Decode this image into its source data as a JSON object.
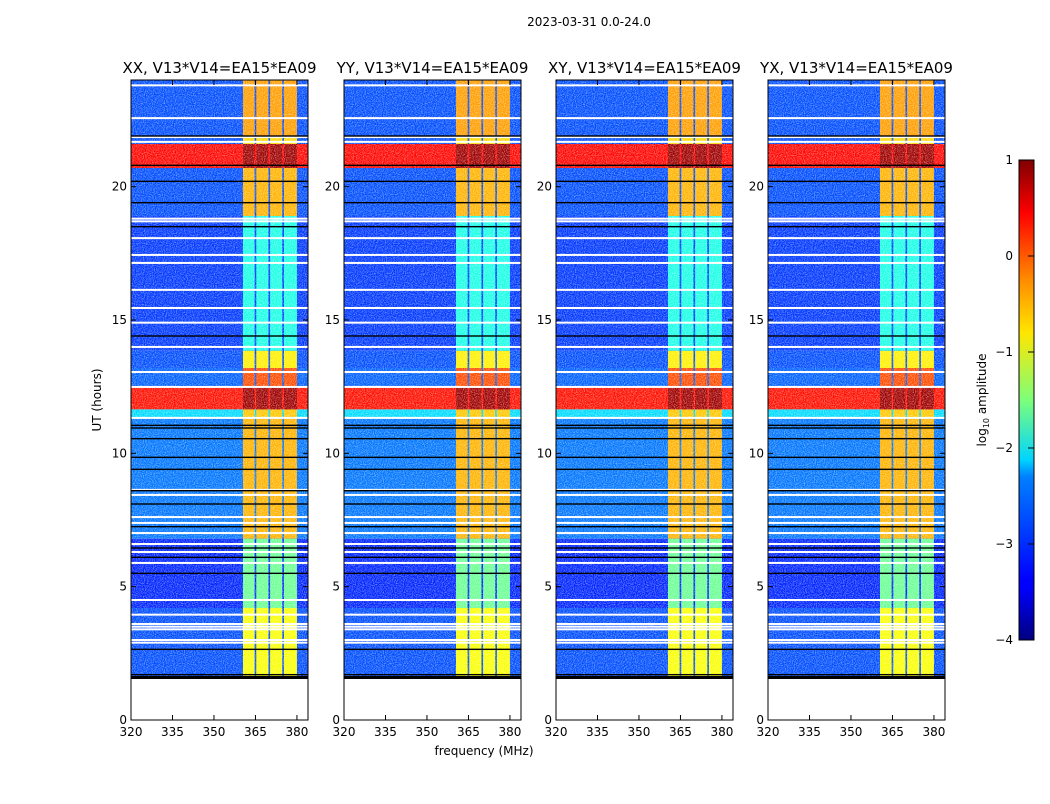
{
  "figure_title": "2023-03-31 0.0-24.0",
  "chart_data": {
    "type": "heatmap",
    "title": "2023-03-31 0.0-24.0",
    "xlabel": "frequency (MHz)",
    "ylabel": "UT (hours)",
    "xlim": [
      320,
      384
    ],
    "ylim": [
      0,
      24
    ],
    "xticks": [
      "320",
      "335",
      "350",
      "365",
      "380"
    ],
    "yticks": [
      "0",
      "5",
      "10",
      "15",
      "20"
    ],
    "panels": [
      {
        "title": "XX, V13*V14=EA15*EA09"
      },
      {
        "title": "YY, V13*V14=EA15*EA09"
      },
      {
        "title": "XY, V13*V14=EA15*EA09"
      },
      {
        "title": "YX, V13*V14=EA15*EA09"
      }
    ],
    "data_time_range": [
      1.65,
      24
    ],
    "rfi_subbands_mhz": [
      [
        360.5,
        364.7
      ],
      [
        365.3,
        369.7
      ],
      [
        370.3,
        374.7
      ],
      [
        375.3,
        380
      ]
    ],
    "segments_log10_amplitude": [
      {
        "t": [
          1.65,
          4.2
        ],
        "background": -3.0,
        "band": -0.9
      },
      {
        "t": [
          4.2,
          6.8
        ],
        "background": -3.2,
        "band": -1.6
      },
      {
        "t": [
          6.8,
          11.3
        ],
        "background": -2.8,
        "band": -0.5
      },
      {
        "t": [
          11.3,
          11.65
        ],
        "background": -2.3,
        "band": -0.6
      },
      {
        "t": [
          11.65,
          12.5
        ],
        "background": 0.3,
        "band": 0.85
      },
      {
        "t": [
          12.5,
          13.2
        ],
        "background": -2.9,
        "band": 0.0
      },
      {
        "t": [
          13.2,
          13.85
        ],
        "background": -3.0,
        "band": -0.8
      },
      {
        "t": [
          13.85,
          18.9
        ],
        "background": -3.1,
        "band": -2.0
      },
      {
        "t": [
          18.9,
          20.7
        ],
        "background": -3.0,
        "band": -0.5
      },
      {
        "t": [
          20.7,
          21.6
        ],
        "background": 0.35,
        "band": 0.85
      },
      {
        "t": [
          21.6,
          21.9
        ],
        "background": -3.0,
        "band": -0.7
      },
      {
        "t": [
          21.9,
          24.0
        ],
        "background": -3.0,
        "band": -0.4
      }
    ],
    "flagged_rows_ut": [
      2.9,
      3.0,
      3.4,
      3.5,
      3.6,
      3.95,
      4.5,
      5.89,
      6.3,
      6.6,
      7.01,
      7.39,
      7.61,
      8.44,
      8.63,
      11.33,
      12.49,
      13.05,
      13.99,
      14.9,
      15.45,
      16.13,
      17.14,
      17.44,
      18.07,
      18.7,
      18.8,
      21.68,
      21.86,
      22.57,
      23.8
    ],
    "gap_rows_ut": [
      1.7,
      2.65,
      5.5,
      6.1,
      6.45,
      7.25,
      8.1,
      8.6,
      9.4,
      9.85,
      10.55,
      10.95,
      11.05,
      14.4,
      18.5,
      19.4,
      20.2,
      20.8,
      21.9
    ],
    "colorbar": {
      "label": "log10 amplitude",
      "label_main": "log",
      "label_sub": "10",
      "label_tail": " amplitude",
      "range": [
        -4,
        1
      ],
      "ticks": [
        "1",
        "0",
        "−1",
        "−2",
        "−3",
        "−4"
      ],
      "colormap": "jet"
    }
  }
}
